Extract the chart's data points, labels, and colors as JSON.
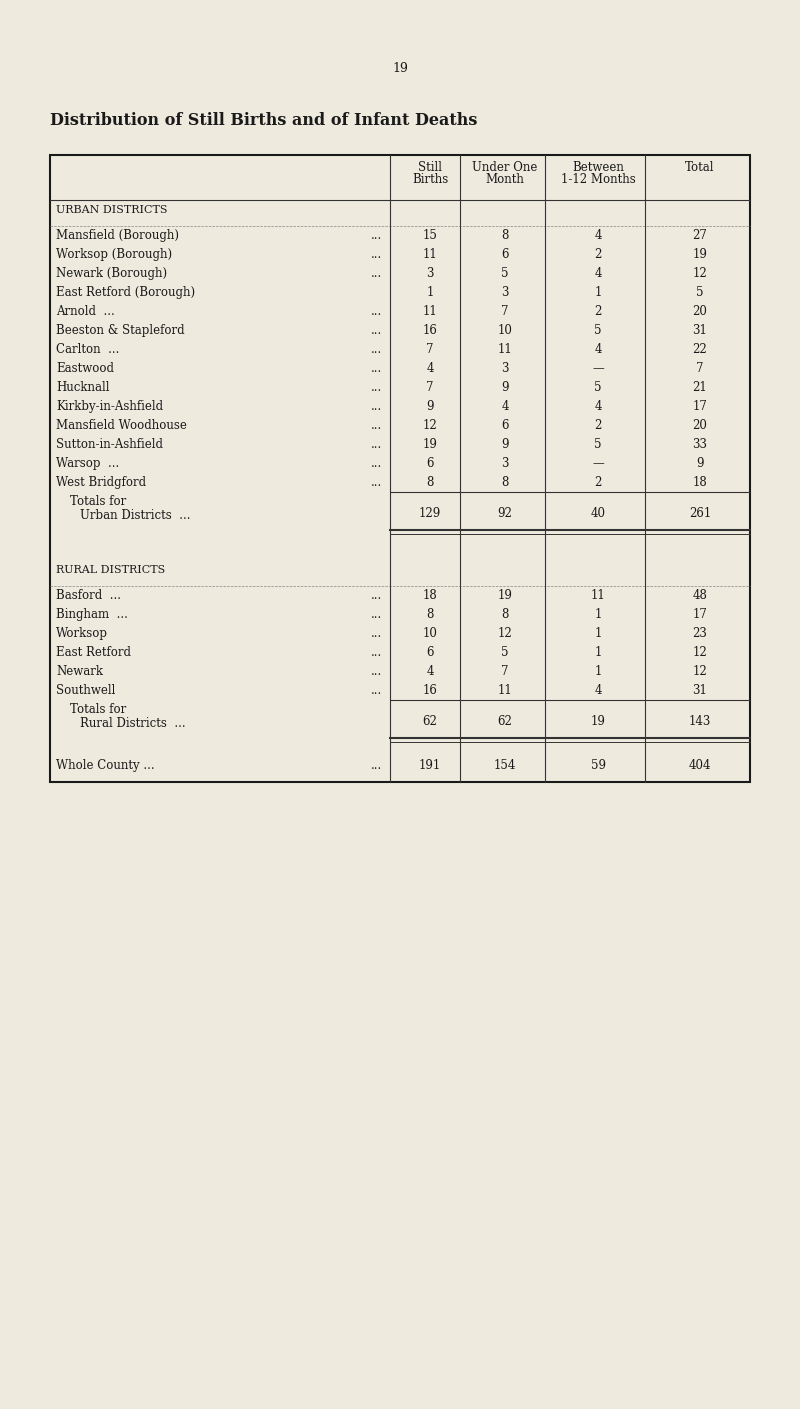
{
  "title": "Distribution of Still Births and of Infant Deaths",
  "page_number": "19",
  "background_color": "#eeeade",
  "col_headers_line1": [
    "Still",
    "Under One",
    "Between",
    "Total"
  ],
  "col_headers_line2": [
    "Births",
    "Month",
    "1-12 Months",
    ""
  ],
  "sections": [
    {
      "section_label": "URBAN DISTRICTS",
      "rows": [
        {
          "label": "Mansfield (Borough)",
          "dots": "...",
          "values": [
            "15",
            "8",
            "4",
            "27"
          ]
        },
        {
          "label": "Worksop (Borough)",
          "dots": "...",
          "values": [
            "11",
            "6",
            "2",
            "19"
          ]
        },
        {
          "label": "Newark (Borough)",
          "dots": "...",
          "values": [
            "3",
            "5",
            "4",
            "12"
          ]
        },
        {
          "label": "East Retford (Borough)",
          "dots": "",
          "values": [
            "1",
            "3",
            "1",
            "5"
          ]
        },
        {
          "label": "Arnold  ...",
          "dots": "...",
          "values": [
            "11",
            "7",
            "2",
            "20"
          ]
        },
        {
          "label": "Beeston & Stapleford",
          "dots": "...",
          "values": [
            "16",
            "10",
            "5",
            "31"
          ]
        },
        {
          "label": "Carlton  ...",
          "dots": "...",
          "values": [
            "7",
            "11",
            "4",
            "22"
          ]
        },
        {
          "label": "Eastwood",
          "dots": "...",
          "values": [
            "4",
            "3",
            "—",
            "7"
          ]
        },
        {
          "label": "Hucknall",
          "dots": "...",
          "values": [
            "7",
            "9",
            "5",
            "21"
          ]
        },
        {
          "label": "Kirkby-in-Ashfield",
          "dots": "...",
          "values": [
            "9",
            "4",
            "4",
            "17"
          ]
        },
        {
          "label": "Mansfield Woodhouse",
          "dots": "...",
          "values": [
            "12",
            "6",
            "2",
            "20"
          ]
        },
        {
          "label": "Sutton-in-Ashfield",
          "dots": "...",
          "values": [
            "19",
            "9",
            "5",
            "33"
          ]
        },
        {
          "label": "Warsop  ...",
          "dots": "...",
          "values": [
            "6",
            "3",
            "—",
            "9"
          ]
        },
        {
          "label": "West Bridgford",
          "dots": "...",
          "values": [
            "8",
            "8",
            "2",
            "18"
          ]
        }
      ],
      "totals_line1": "Totals for",
      "totals_line2": "Urban Districts",
      "totals_dots": "...",
      "totals": [
        "129",
        "92",
        "40",
        "261"
      ]
    },
    {
      "section_label": "RURAL DISTRICTS",
      "rows": [
        {
          "label": "Basford  ...",
          "dots": "...",
          "values": [
            "18",
            "19",
            "11",
            "48"
          ]
        },
        {
          "label": "Bingham  ...",
          "dots": "...",
          "values": [
            "8",
            "8",
            "1",
            "17"
          ]
        },
        {
          "label": "Worksop",
          "dots": "...",
          "values": [
            "10",
            "12",
            "1",
            "23"
          ]
        },
        {
          "label": "East Retford",
          "dots": "...",
          "values": [
            "6",
            "5",
            "1",
            "12"
          ]
        },
        {
          "label": "Newark",
          "dots": "...",
          "values": [
            "4",
            "7",
            "1",
            "12"
          ]
        },
        {
          "label": "Southwell",
          "dots": "...",
          "values": [
            "16",
            "11",
            "4",
            "31"
          ]
        }
      ],
      "totals_line1": "Totals for",
      "totals_line2": "Rural Districts",
      "totals_dots": "...",
      "totals": [
        "62",
        "62",
        "19",
        "143"
      ]
    }
  ],
  "grand_total_label": "Whole County ...",
  "grand_total_dots": "...",
  "grand_total": [
    "191",
    "154",
    "59",
    "404"
  ],
  "text_color": "#1a1a1a",
  "font_size_page": 9,
  "font_size_title": 11.5,
  "font_size_header": 8.5,
  "font_size_body": 8.5,
  "font_size_section": 8.0
}
